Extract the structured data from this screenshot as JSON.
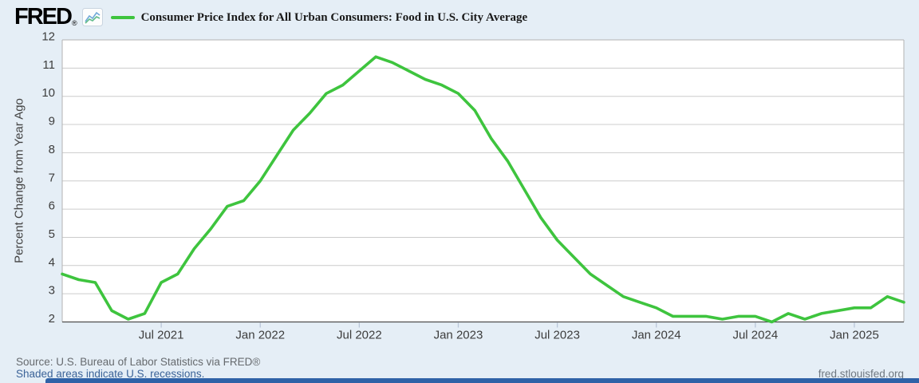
{
  "header": {
    "logo": "FRED",
    "registered": "®"
  },
  "footer": {
    "source_line": "Source: U.S. Bureau of Labor Statistics via FRED®",
    "recessions_link": "Shaded areas indicate U.S. recessions.",
    "site_link": "fred.stlouisfed.org"
  },
  "colors": {
    "background": "#e5eef6",
    "plot_background": "#ffffff",
    "line_green": "#3ec43e",
    "gridline": "#cccccc",
    "plot_border": "#b3b3b3",
    "axis_line": "#4d4d4d",
    "tick_mark": "#b9c6d8",
    "axis_label": "#3d3d3d",
    "link_blue": "#3b6398",
    "source_gray": "#666a6e",
    "footer_bar_blue": "#2f62a7"
  },
  "chart_data": {
    "type": "line",
    "title": "Consumer Price Index for All Urban Consumers: Food in U.S. City Average",
    "ylabel": "Percent Change from Year Ago",
    "ylim": [
      2,
      12
    ],
    "y_ticks": [
      2,
      3,
      4,
      5,
      6,
      7,
      8,
      9,
      10,
      11,
      12
    ],
    "x_ticks": [
      {
        "label": "Jul 2021",
        "date": "2021-07"
      },
      {
        "label": "Jan 2022",
        "date": "2022-01"
      },
      {
        "label": "Jul 2022",
        "date": "2022-07"
      },
      {
        "label": "Jan 2023",
        "date": "2023-01"
      },
      {
        "label": "Jul 2023",
        "date": "2023-07"
      },
      {
        "label": "Jan 2024",
        "date": "2024-01"
      },
      {
        "label": "Jul 2024",
        "date": "2024-07"
      },
      {
        "label": "Jan 2025",
        "date": "2025-01"
      }
    ],
    "grid": "horizontal",
    "legend_position": "top-left",
    "line_color": "#3ec43e",
    "series": [
      {
        "name": "Consumer Price Index for All Urban Consumers: Food in U.S. City Average",
        "dates": [
          "2021-01",
          "2021-02",
          "2021-03",
          "2021-04",
          "2021-05",
          "2021-06",
          "2021-07",
          "2021-08",
          "2021-09",
          "2021-10",
          "2021-11",
          "2021-12",
          "2022-01",
          "2022-02",
          "2022-03",
          "2022-04",
          "2022-05",
          "2022-06",
          "2022-07",
          "2022-08",
          "2022-09",
          "2022-10",
          "2022-11",
          "2022-12",
          "2023-01",
          "2023-02",
          "2023-03",
          "2023-04",
          "2023-05",
          "2023-06",
          "2023-07",
          "2023-08",
          "2023-09",
          "2023-10",
          "2023-11",
          "2023-12",
          "2024-01",
          "2024-02",
          "2024-03",
          "2024-04",
          "2024-05",
          "2024-06",
          "2024-07",
          "2024-08",
          "2024-09",
          "2024-10",
          "2024-11",
          "2024-12",
          "2025-01",
          "2025-02",
          "2025-03",
          "2025-04"
        ],
        "values": [
          3.7,
          3.5,
          3.4,
          2.4,
          2.1,
          2.3,
          3.4,
          3.7,
          4.6,
          5.3,
          6.1,
          6.3,
          7.0,
          7.9,
          8.8,
          9.4,
          10.1,
          10.4,
          10.9,
          11.4,
          11.2,
          10.9,
          10.6,
          10.4,
          10.1,
          9.5,
          8.5,
          7.7,
          6.7,
          5.7,
          4.9,
          4.3,
          3.7,
          3.3,
          2.9,
          2.7,
          2.5,
          2.2,
          2.2,
          2.2,
          2.1,
          2.2,
          2.2,
          2.0,
          2.3,
          2.1,
          2.3,
          2.4,
          2.5,
          2.5,
          2.9,
          2.7
        ]
      }
    ]
  }
}
